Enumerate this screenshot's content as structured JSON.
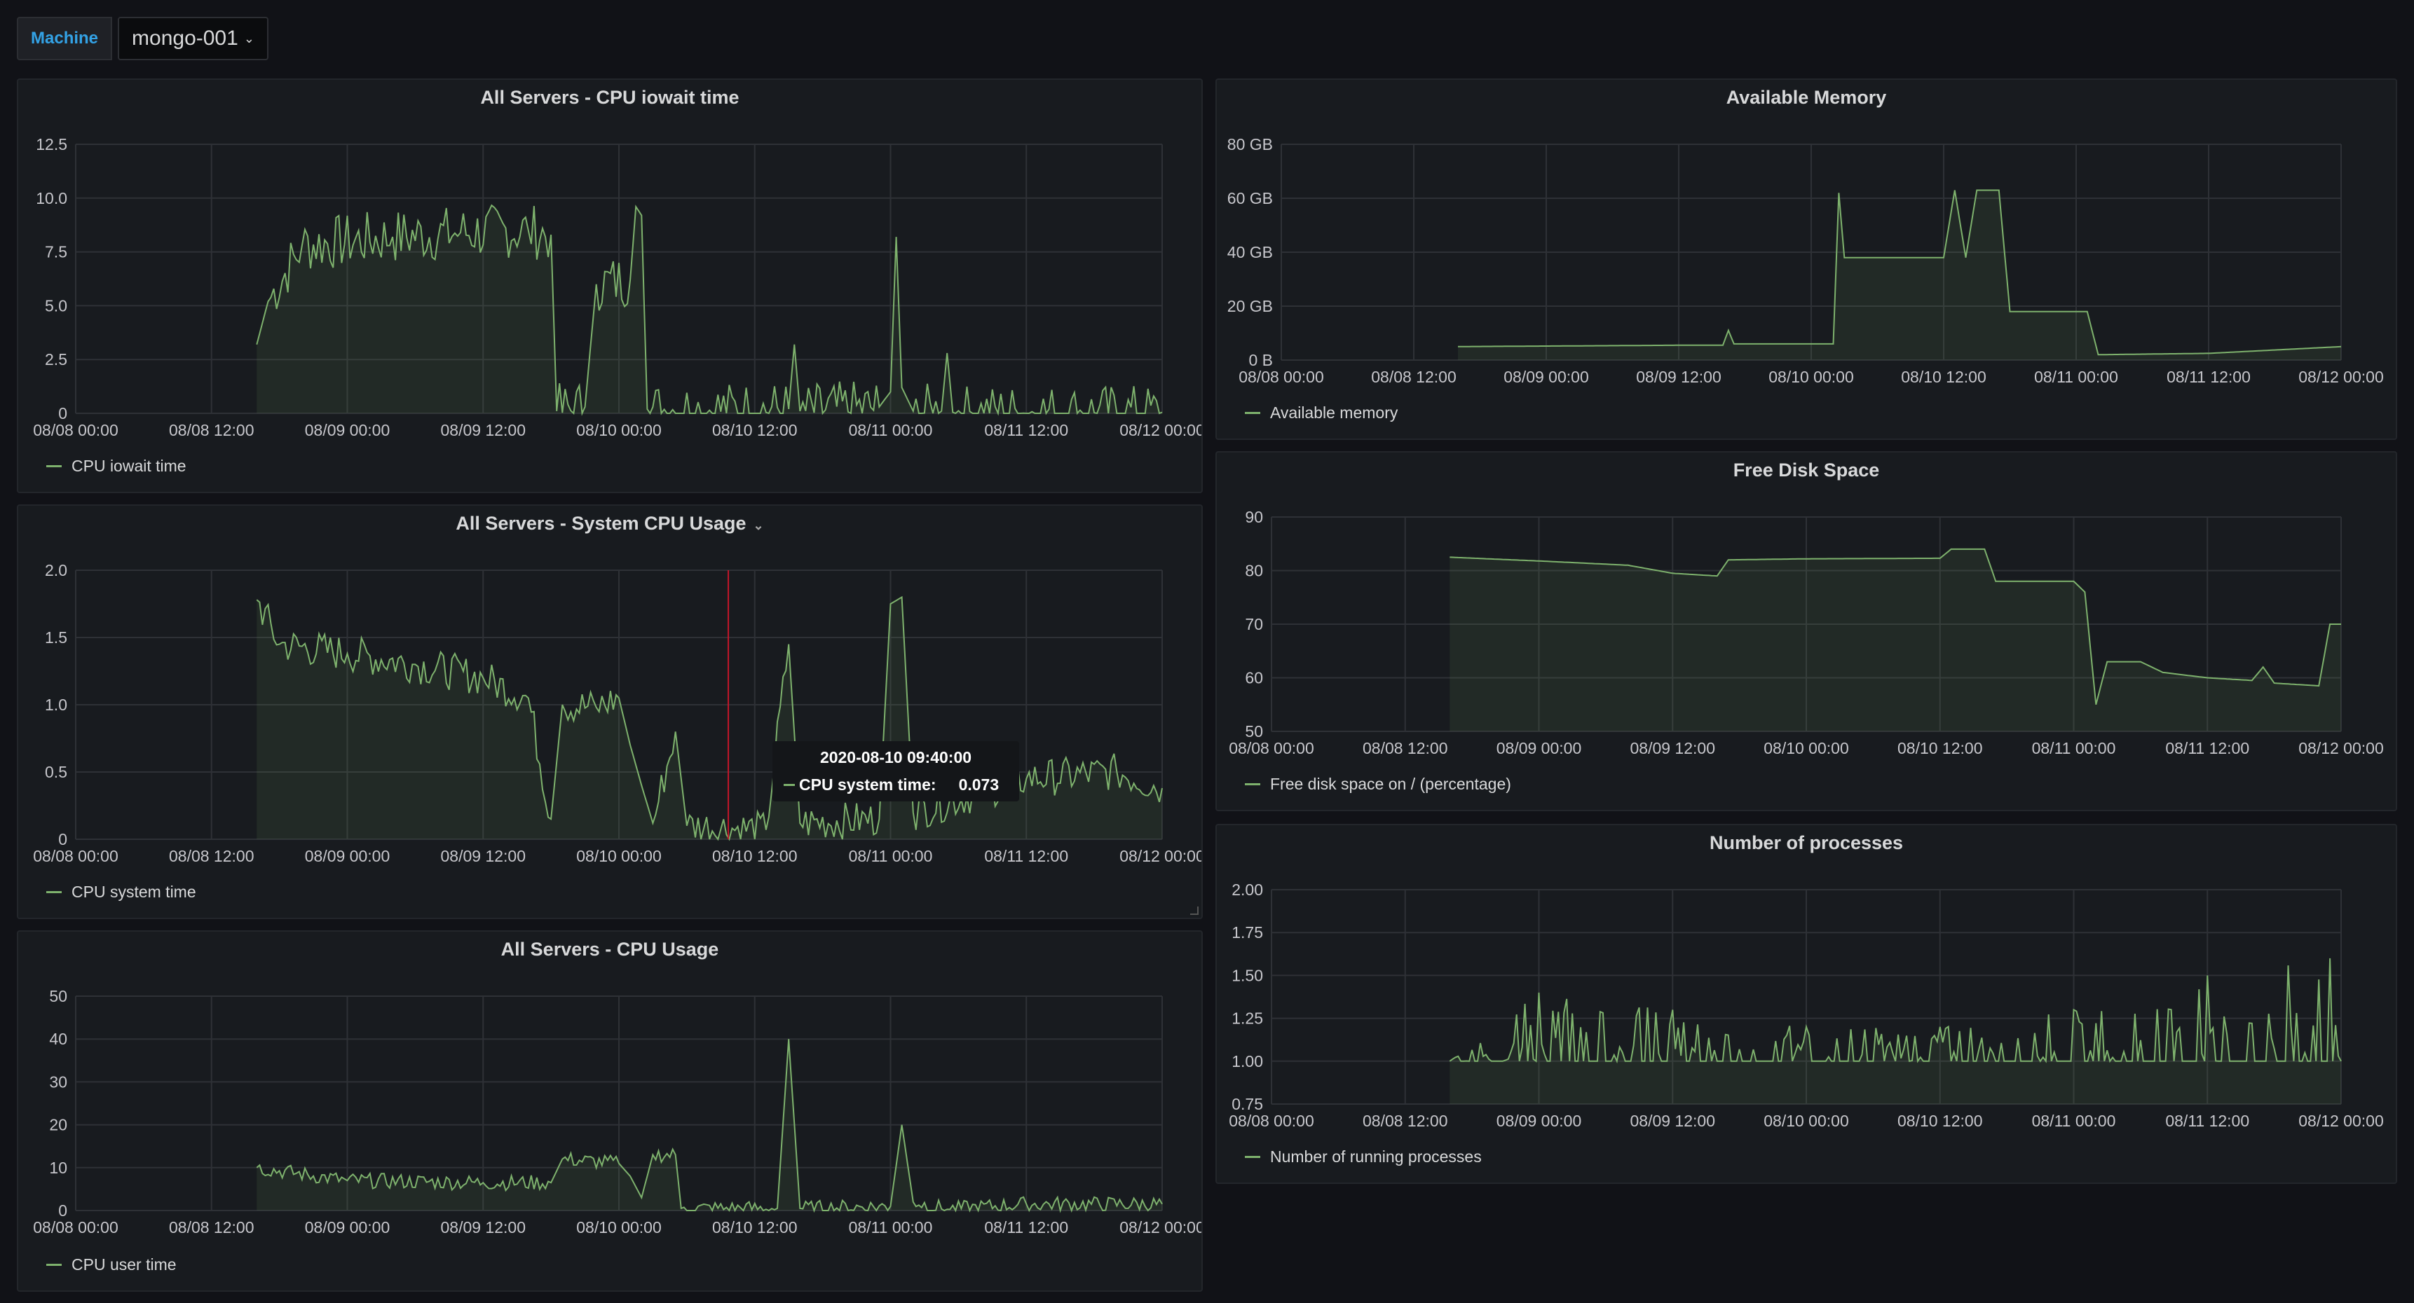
{
  "variable": {
    "label": "Machine",
    "value": "mongo-001"
  },
  "panels": {
    "iowait": {
      "title": "All Servers - CPU iowait time",
      "legend": "CPU iowait time"
    },
    "system": {
      "title": "All Servers - System CPU Usage",
      "legend": "CPU system time"
    },
    "usage": {
      "title": "All Servers - CPU Usage",
      "legend": "CPU user time"
    },
    "memory": {
      "title": "Available Memory",
      "legend": "Available memory"
    },
    "disk": {
      "title": "Free Disk Space",
      "legend": "Free disk space on / (percentage)"
    },
    "procs": {
      "title": "Number of processes",
      "legend": "Number of running processes"
    }
  },
  "tooltip": {
    "time": "2020-08-10 09:40:00",
    "label": "CPU system time:",
    "value": "0.073"
  },
  "colors": {
    "series": "#7eb26d",
    "grid": "#2e3136",
    "crosshair": "#c4162a",
    "accent": "#33a2e5"
  },
  "chart_data": [
    {
      "id": "iowait",
      "type": "area",
      "title": "All Servers - CPU iowait time",
      "x_ticks": [
        "08/08 00:00",
        "08/08 12:00",
        "08/09 00:00",
        "08/09 12:00",
        "08/10 00:00",
        "08/10 12:00",
        "08/11 00:00",
        "08/11 12:00",
        "08/12 00:00"
      ],
      "y_ticks": [
        "0",
        "2.5",
        "5.0",
        "7.5",
        "10.0",
        "12.5"
      ],
      "ylim": [
        0,
        12.5
      ],
      "noise": 1.3,
      "series": [
        {
          "name": "CPU iowait time",
          "points": [
            [
              "08/08 16:00",
              3.2
            ],
            [
              "08/08 17:00",
              5.2
            ],
            [
              "08/08 20:00",
              7.8
            ],
            [
              "08/09 04:00",
              8.2
            ],
            [
              "08/09 10:00",
              8.4
            ],
            [
              "08/09 16:00",
              8.5
            ],
            [
              "08/09 18:00",
              8.3
            ],
            [
              "08/09 18:30",
              0.1
            ],
            [
              "08/09 21:00",
              0.3
            ],
            [
              "08/09 22:00",
              6.0
            ],
            [
              "08/10 01:00",
              6.2
            ],
            [
              "08/10 01:30",
              9.6
            ],
            [
              "08/10 02:00",
              9.2
            ],
            [
              "08/10 02:30",
              0.2
            ],
            [
              "08/10 15:00",
              0.2
            ],
            [
              "08/10 15:30",
              3.2
            ],
            [
              "08/10 16:00",
              0.1
            ],
            [
              "08/10 23:00",
              0.3
            ],
            [
              "08/11 00:00",
              1.0
            ],
            [
              "08/11 00:30",
              8.2
            ],
            [
              "08/11 01:00",
              1.2
            ],
            [
              "08/11 02:00",
              0.1
            ],
            [
              "08/11 04:30",
              0.1
            ],
            [
              "08/11 05:00",
              2.8
            ],
            [
              "08/11 05:30",
              0.05
            ],
            [
              "08/12 00:00",
              0.05
            ]
          ]
        }
      ]
    },
    {
      "id": "system",
      "type": "area",
      "title": "All Servers - System CPU Usage",
      "x_ticks": [
        "08/08 00:00",
        "08/08 12:00",
        "08/09 00:00",
        "08/09 12:00",
        "08/10 00:00",
        "08/10 12:00",
        "08/11 00:00",
        "08/11 12:00",
        "08/12 00:00"
      ],
      "y_ticks": [
        "0",
        "0.5",
        "1.0",
        "1.5",
        "2.0"
      ],
      "ylim": [
        0,
        2.0
      ],
      "noise": 0.14,
      "series": [
        {
          "name": "CPU system time",
          "points": [
            [
              "08/08 16:00",
              1.78
            ],
            [
              "08/08 18:00",
              1.45
            ],
            [
              "08/09 00:00",
              1.38
            ],
            [
              "08/09 06:00",
              1.3
            ],
            [
              "08/09 12:00",
              1.2
            ],
            [
              "08/09 16:00",
              1.05
            ],
            [
              "08/09 18:00",
              0.15
            ],
            [
              "08/09 19:00",
              1.0
            ],
            [
              "08/09 22:00",
              0.98
            ],
            [
              "08/10 00:00",
              1.05
            ],
            [
              "08/10 01:00",
              0.7
            ],
            [
              "08/10 02:00",
              0.4
            ],
            [
              "08/10 03:00",
              0.12
            ],
            [
              "08/10 05:00",
              0.8
            ],
            [
              "08/10 06:00",
              0.1
            ],
            [
              "08/10 13:00",
              0.07
            ],
            [
              "08/10 15:00",
              1.45
            ],
            [
              "08/10 16:00",
              0.12
            ],
            [
              "08/10 23:00",
              0.15
            ],
            [
              "08/11 00:00",
              1.75
            ],
            [
              "08/11 01:00",
              1.8
            ],
            [
              "08/11 02:00",
              0.2
            ],
            [
              "08/11 12:00",
              0.45
            ],
            [
              "08/11 20:00",
              0.5
            ],
            [
              "08/12 00:00",
              0.38
            ]
          ]
        }
      ]
    },
    {
      "id": "usage",
      "type": "area",
      "title": "All Servers - CPU Usage",
      "x_ticks": [
        "08/08 00:00",
        "08/08 12:00",
        "08/09 00:00",
        "08/09 12:00",
        "08/10 00:00",
        "08/10 12:00",
        "08/11 00:00",
        "08/11 12:00",
        "08/12 00:00"
      ],
      "y_ticks": [
        "0",
        "10",
        "20",
        "30",
        "40",
        "50"
      ],
      "ylim": [
        0,
        50
      ],
      "noise": 1.8,
      "series": [
        {
          "name": "CPU user time",
          "points": [
            [
              "08/08 16:00",
              10
            ],
            [
              "08/09 00:00",
              7
            ],
            [
              "08/09 12:00",
              6.5
            ],
            [
              "08/09 18:00",
              6.5
            ],
            [
              "08/09 19:00",
              12
            ],
            [
              "08/10 00:00",
              11
            ],
            [
              "08/10 01:00",
              8
            ],
            [
              "08/10 02:00",
              3
            ],
            [
              "08/10 03:00",
              13
            ],
            [
              "08/10 05:00",
              13
            ],
            [
              "08/10 05:30",
              0.5
            ],
            [
              "08/10 14:00",
              0.5
            ],
            [
              "08/10 15:00",
              40
            ],
            [
              "08/10 16:00",
              0.5
            ],
            [
              "08/11 00:00",
              1
            ],
            [
              "08/11 01:00",
              20
            ],
            [
              "08/11 02:00",
              2
            ],
            [
              "08/11 05:00",
              0.3
            ],
            [
              "08/11 12:00",
              1.5
            ],
            [
              "08/12 00:00",
              1.5
            ]
          ]
        }
      ]
    },
    {
      "id": "memory",
      "type": "area",
      "title": "Available Memory",
      "x_ticks": [
        "08/08 00:00",
        "08/08 12:00",
        "08/09 00:00",
        "08/09 12:00",
        "08/10 00:00",
        "08/10 12:00",
        "08/11 00:00",
        "08/11 12:00",
        "08/12 00:00"
      ],
      "y_ticks": [
        "0 B",
        "20 GB",
        "40 GB",
        "60 GB",
        "80 GB"
      ],
      "ylim": [
        0,
        80
      ],
      "noise": 0,
      "series": [
        {
          "name": "Available memory",
          "points": [
            [
              "08/08 16:00",
              5
            ],
            [
              "08/09 12:00",
              5.5
            ],
            [
              "08/09 16:00",
              5.5
            ],
            [
              "08/09 16:30",
              11
            ],
            [
              "08/09 17:00",
              6
            ],
            [
              "08/10 00:00",
              6
            ],
            [
              "08/10 02:00",
              6
            ],
            [
              "08/10 02:30",
              62
            ],
            [
              "08/10 03:00",
              38
            ],
            [
              "08/10 12:00",
              38
            ],
            [
              "08/10 13:00",
              63
            ],
            [
              "08/10 14:00",
              38
            ],
            [
              "08/10 15:00",
              63
            ],
            [
              "08/10 17:00",
              63
            ],
            [
              "08/10 18:00",
              18
            ],
            [
              "08/11 00:00",
              18
            ],
            [
              "08/11 01:00",
              18
            ],
            [
              "08/11 02:00",
              2
            ],
            [
              "08/11 12:00",
              2.5
            ],
            [
              "08/12 00:00",
              5
            ]
          ]
        }
      ]
    },
    {
      "id": "disk",
      "type": "area",
      "title": "Free Disk Space",
      "x_ticks": [
        "08/08 00:00",
        "08/08 12:00",
        "08/09 00:00",
        "08/09 12:00",
        "08/10 00:00",
        "08/10 12:00",
        "08/11 00:00",
        "08/11 12:00",
        "08/12 00:00"
      ],
      "y_ticks": [
        "50",
        "60",
        "70",
        "80",
        "90"
      ],
      "ylim": [
        50,
        90
      ],
      "noise": 0,
      "series": [
        {
          "name": "Free disk space on / (percentage)",
          "points": [
            [
              "08/08 16:00",
              82.5
            ],
            [
              "08/09 00:00",
              81.8
            ],
            [
              "08/09 08:00",
              81
            ],
            [
              "08/09 12:00",
              79.5
            ],
            [
              "08/09 16:00",
              79
            ],
            [
              "08/09 17:00",
              82
            ],
            [
              "08/10 00:00",
              82.2
            ],
            [
              "08/10 12:00",
              82.3
            ],
            [
              "08/10 13:00",
              84
            ],
            [
              "08/10 16:00",
              84
            ],
            [
              "08/10 17:00",
              78
            ],
            [
              "08/11 00:00",
              78
            ],
            [
              "08/11 01:00",
              76
            ],
            [
              "08/11 02:00",
              55
            ],
            [
              "08/11 03:00",
              63
            ],
            [
              "08/11 06:00",
              63
            ],
            [
              "08/11 08:00",
              61
            ],
            [
              "08/11 12:00",
              60
            ],
            [
              "08/11 16:00",
              59.5
            ],
            [
              "08/11 17:00",
              62
            ],
            [
              "08/11 18:00",
              59
            ],
            [
              "08/11 22:00",
              58.5
            ],
            [
              "08/11 23:00",
              70
            ],
            [
              "08/12 00:00",
              70
            ]
          ]
        }
      ]
    },
    {
      "id": "procs",
      "type": "area",
      "title": "Number of processes",
      "x_ticks": [
        "08/08 00:00",
        "08/08 12:00",
        "08/09 00:00",
        "08/09 12:00",
        "08/10 00:00",
        "08/10 12:00",
        "08/11 00:00",
        "08/11 12:00",
        "08/12 00:00"
      ],
      "y_ticks": [
        "0.75",
        "1.00",
        "1.25",
        "1.50",
        "1.75",
        "2.00"
      ],
      "ylim": [
        0.75,
        2.0
      ],
      "noise": 0,
      "series": [
        {
          "name": "Number of running processes",
          "points": [
            [
              "08/08 16:00",
              1.0
            ],
            [
              "08/09 00:00",
              1.4
            ],
            [
              "08/09 12:00",
              1.3
            ],
            [
              "08/10 00:00",
              1.2
            ],
            [
              "08/10 12:00",
              1.2
            ],
            [
              "08/11 00:00",
              1.3
            ],
            [
              "08/11 12:00",
              1.5
            ],
            [
              "08/11 23:00",
              1.6
            ],
            [
              "08/12 00:00",
              1.0
            ]
          ]
        }
      ]
    }
  ]
}
